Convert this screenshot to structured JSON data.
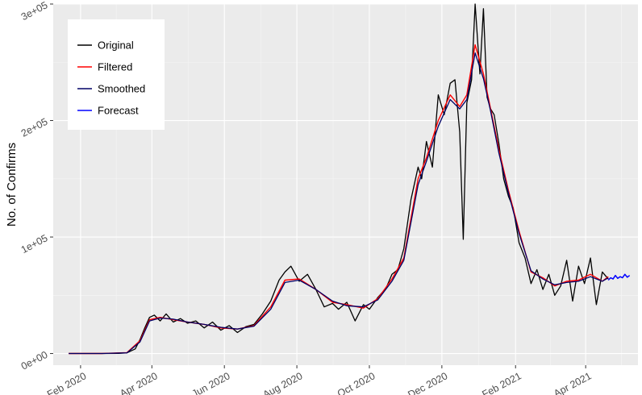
{
  "chart_data": {
    "type": "line",
    "title": "",
    "xlabel": "",
    "ylabel": "No. of Confirms",
    "x_ticks": [
      "Feb 2020",
      "Apr 2020",
      "Jun 2020",
      "Aug 2020",
      "Oct 2020",
      "Dec 2020",
      "Feb 2021",
      "Apr 2021"
    ],
    "y_ticks": [
      "0e+00",
      "1e+05",
      "2e+05",
      "3e+05"
    ],
    "xlim": [
      "2020-01-09",
      "2021-05-15"
    ],
    "ylim": [
      -10000,
      300000
    ],
    "grid": true,
    "legend_position": "top-left",
    "colors": {
      "Original": "#000000",
      "Filtered": "#ff0000",
      "Smoothed": "#000066",
      "Forecast": "#0000ff",
      "panel_background": "#ebebeb",
      "grid_major": "#ffffff",
      "grid_minor": "#f5f5f5"
    },
    "series": [
      {
        "name": "Original",
        "x": [
          "2020-01-22",
          "2020-02-05",
          "2020-02-19",
          "2020-03-04",
          "2020-03-11",
          "2020-03-18",
          "2020-03-22",
          "2020-03-26",
          "2020-03-30",
          "2020-04-03",
          "2020-04-08",
          "2020-04-13",
          "2020-04-19",
          "2020-04-25",
          "2020-05-01",
          "2020-05-08",
          "2020-05-15",
          "2020-05-22",
          "2020-05-29",
          "2020-06-05",
          "2020-06-12",
          "2020-06-19",
          "2020-06-26",
          "2020-07-03",
          "2020-07-10",
          "2020-07-17",
          "2020-07-22",
          "2020-07-27",
          "2020-08-03",
          "2020-08-10",
          "2020-08-17",
          "2020-08-24",
          "2020-08-31",
          "2020-09-05",
          "2020-09-12",
          "2020-09-19",
          "2020-09-26",
          "2020-10-01",
          "2020-10-08",
          "2020-10-15",
          "2020-10-20",
          "2020-10-25",
          "2020-10-30",
          "2020-11-05",
          "2020-11-11",
          "2020-11-14",
          "2020-11-18",
          "2020-11-23",
          "2020-11-28",
          "2020-12-03",
          "2020-12-08",
          "2020-12-12",
          "2020-12-16",
          "2020-12-19",
          "2020-12-22",
          "2020-12-26",
          "2020-12-29",
          "2021-01-02",
          "2021-01-05",
          "2021-01-08",
          "2021-01-11",
          "2021-01-14",
          "2021-01-18",
          "2021-01-22",
          "2021-01-26",
          "2021-01-30",
          "2021-02-04",
          "2021-02-09",
          "2021-02-14",
          "2021-02-19",
          "2021-02-24",
          "2021-03-01",
          "2021-03-06",
          "2021-03-11",
          "2021-03-16",
          "2021-03-21",
          "2021-03-26",
          "2021-03-31",
          "2021-04-05",
          "2021-04-10",
          "2021-04-15",
          "2021-04-20"
        ],
        "values": [
          0,
          0,
          0,
          100,
          600,
          4000,
          12000,
          22000,
          31000,
          33000,
          28000,
          34000,
          27000,
          30000,
          26000,
          28000,
          22000,
          27000,
          20000,
          24000,
          18000,
          23000,
          25000,
          34000,
          45000,
          63000,
          70000,
          75000,
          62000,
          68000,
          55000,
          40000,
          43000,
          38000,
          44000,
          28000,
          42000,
          38000,
          48000,
          56000,
          68000,
          72000,
          90000,
          132000,
          160000,
          150000,
          182000,
          160000,
          222000,
          205000,
          232000,
          235000,
          190000,
          98000,
          215000,
          235000,
          300000,
          240000,
          296000,
          220000,
          210000,
          205000,
          180000,
          150000,
          135000,
          125000,
          95000,
          82000,
          60000,
          72000,
          55000,
          68000,
          50000,
          58000,
          80000,
          45000,
          75000,
          60000,
          82000,
          42000,
          70000,
          64000
        ]
      },
      {
        "name": "Filtered",
        "x": [
          "2020-01-22",
          "2020-02-19",
          "2020-03-11",
          "2020-03-22",
          "2020-03-30",
          "2020-04-08",
          "2020-04-19",
          "2020-05-01",
          "2020-05-15",
          "2020-05-29",
          "2020-06-12",
          "2020-06-26",
          "2020-07-10",
          "2020-07-22",
          "2020-08-03",
          "2020-08-17",
          "2020-08-31",
          "2020-09-12",
          "2020-09-26",
          "2020-10-08",
          "2020-10-20",
          "2020-10-30",
          "2020-11-11",
          "2020-11-18",
          "2020-11-28",
          "2020-12-08",
          "2020-12-16",
          "2020-12-22",
          "2020-12-29",
          "2021-01-05",
          "2021-01-11",
          "2021-01-18",
          "2021-01-26",
          "2021-02-04",
          "2021-02-14",
          "2021-02-24",
          "2021-03-06",
          "2021-03-16",
          "2021-03-26",
          "2021-04-05",
          "2021-04-15",
          "2021-04-20"
        ],
        "values": [
          0,
          0,
          800,
          11000,
          29000,
          31000,
          29000,
          27000,
          25000,
          22000,
          21000,
          24000,
          40000,
          63000,
          64000,
          55000,
          44000,
          42000,
          39000,
          47000,
          64000,
          82000,
          150000,
          168000,
          200000,
          222000,
          212000,
          222000,
          265000,
          240000,
          210000,
          175000,
          140000,
          105000,
          70000,
          65000,
          58000,
          62000,
          63000,
          68000,
          62000,
          66000
        ]
      },
      {
        "name": "Smoothed",
        "x": [
          "2020-01-22",
          "2020-02-19",
          "2020-03-11",
          "2020-03-22",
          "2020-03-30",
          "2020-04-08",
          "2020-04-19",
          "2020-05-01",
          "2020-05-15",
          "2020-05-29",
          "2020-06-12",
          "2020-06-26",
          "2020-07-10",
          "2020-07-22",
          "2020-08-03",
          "2020-08-17",
          "2020-08-31",
          "2020-09-12",
          "2020-09-26",
          "2020-10-08",
          "2020-10-20",
          "2020-10-30",
          "2020-11-11",
          "2020-11-18",
          "2020-11-28",
          "2020-12-08",
          "2020-12-16",
          "2020-12-22",
          "2020-12-29",
          "2021-01-05",
          "2021-01-11",
          "2021-01-18",
          "2021-01-26",
          "2021-02-04",
          "2021-02-14",
          "2021-02-24",
          "2021-03-06",
          "2021-03-16",
          "2021-03-26",
          "2021-04-05",
          "2021-04-15",
          "2021-04-20"
        ],
        "values": [
          0,
          0,
          600,
          10000,
          28000,
          30500,
          29500,
          27000,
          25000,
          22500,
          21000,
          23500,
          38000,
          61000,
          63000,
          55000,
          45000,
          41000,
          40000,
          46000,
          62000,
          80000,
          145000,
          165000,
          195000,
          218000,
          210000,
          218000,
          258000,
          236000,
          208000,
          172000,
          138000,
          103000,
          71000,
          64000,
          59000,
          61000,
          62000,
          66000,
          62000,
          65000
        ]
      },
      {
        "name": "Forecast",
        "x": [
          "2021-04-20",
          "2021-04-22",
          "2021-04-24",
          "2021-04-26",
          "2021-04-28",
          "2021-04-30",
          "2021-05-02",
          "2021-05-04",
          "2021-05-06",
          "2021-05-08"
        ],
        "values": [
          63000,
          65000,
          64000,
          67000,
          64500,
          66000,
          65000,
          68000,
          65500,
          67000
        ]
      }
    ]
  }
}
